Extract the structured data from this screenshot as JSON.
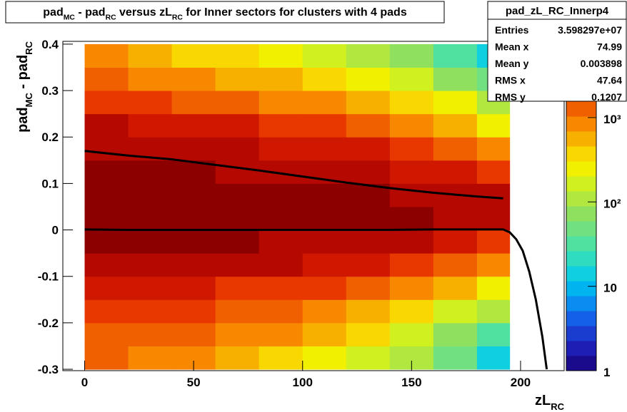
{
  "chart_data": {
    "type": "heatmap",
    "title_parts": [
      "pad",
      "MC",
      " - pad",
      "RC",
      " versus zL",
      "RC",
      " for Inner sectors for clusters with 4 pads"
    ],
    "x_label_parts": [
      "zL",
      "RC"
    ],
    "y_label_parts": [
      "pad",
      "MC",
      " - pad",
      "RC"
    ],
    "xlim": [
      -10,
      220
    ],
    "ylim": [
      -0.303,
      0.406
    ],
    "xticks": [
      0,
      50,
      100,
      150,
      200
    ],
    "yticks": [
      -0.3,
      -0.2,
      -0.1,
      0,
      0.1,
      0.2,
      0.3,
      0.4
    ],
    "zlim": [
      1,
      8000
    ],
    "log_z": true,
    "zticks": [
      1,
      10,
      {
        "value": 100,
        "label": "10²"
      },
      {
        "value": 1000,
        "label": "10³"
      }
    ],
    "palette": [
      "#1a0a8c",
      "#1e1eb4",
      "#1a3ccf",
      "#1460e8",
      "#0a8cf0",
      "#00b4f0",
      "#10d0e0",
      "#30dcc0",
      "#50e0a0",
      "#70e080",
      "#90e060",
      "#b0e840",
      "#d0f020",
      "#f0f000",
      "#f8d800",
      "#f8b000",
      "#f88800",
      "#f06000",
      "#e83800",
      "#d01800",
      "#b40800",
      "#8c0000"
    ],
    "xbins": [
      0,
      20,
      40,
      60,
      80,
      100,
      120,
      140,
      160,
      180,
      195
    ],
    "ybins": [
      -0.3,
      -0.25,
      -0.2,
      -0.15,
      -0.1,
      -0.05,
      0,
      0.05,
      0.1,
      0.15,
      0.2,
      0.25,
      0.3,
      0.35,
      0.4
    ],
    "z": [
      [
        1200,
        1500,
        2000,
        3000,
        4500,
        5500,
        6000,
        6000,
        5500,
        5000,
        4000,
        2000,
        1200,
        700
      ],
      [
        1000,
        1300,
        1800,
        2800,
        4500,
        5500,
        6000,
        6000,
        5500,
        4800,
        3500,
        1800,
        1000,
        600
      ],
      [
        800,
        1100,
        1600,
        2500,
        4200,
        5500,
        6000,
        6000,
        5500,
        4500,
        3000,
        1500,
        800,
        450
      ],
      [
        600,
        900,
        1300,
        2200,
        4000,
        5500,
        6000,
        6000,
        5000,
        4000,
        2500,
        1200,
        650,
        350
      ],
      [
        450,
        700,
        1100,
        2000,
        3800,
        5000,
        6000,
        6000,
        4800,
        3500,
        2000,
        1000,
        500,
        250
      ],
      [
        300,
        500,
        900,
        1700,
        3300,
        4800,
        6000,
        5800,
        4500,
        3000,
        1600,
        800,
        380,
        180
      ],
      [
        180,
        320,
        650,
        1300,
        2800,
        4500,
        5800,
        5500,
        4000,
        2500,
        1200,
        550,
        250,
        110
      ],
      [
        90,
        180,
        400,
        900,
        2200,
        4000,
        5500,
        5000,
        3300,
        1900,
        850,
        380,
        150,
        60
      ],
      [
        40,
        80,
        200,
        550,
        1500,
        3200,
        5000,
        4500,
        2600,
        1300,
        550,
        220,
        80,
        30
      ],
      [
        15,
        35,
        90,
        280,
        900,
        2300,
        4200,
        3800,
        1800,
        800,
        300,
        110,
        40,
        12
      ]
    ],
    "series": [
      {
        "color": "#000000",
        "x": [
          0,
          20,
          40,
          60,
          80,
          100,
          120,
          140,
          160,
          180,
          192,
          195,
          198,
          201,
          204,
          207,
          210,
          212
        ],
        "values": [
          0.001,
          0,
          0,
          0,
          0,
          0,
          0,
          0,
          0.001,
          0.001,
          0.001,
          -0.005,
          -0.02,
          -0.045,
          -0.09,
          -0.15,
          -0.23,
          -0.3
        ]
      },
      {
        "color": "#000000",
        "x": [
          0,
          20,
          40,
          60,
          80,
          100,
          120,
          140,
          160,
          180,
          192
        ],
        "values": [
          0.17,
          0.16,
          0.152,
          0.14,
          0.128,
          0.115,
          0.102,
          0.09,
          0.08,
          0.072,
          0.068
        ]
      }
    ],
    "stats": {
      "name": "pad_zL_RC_Innerp4",
      "rows": [
        [
          "Entries",
          "3.598297e+07"
        ],
        [
          "Mean x",
          "74.99"
        ],
        [
          "Mean y",
          "0.003898"
        ],
        [
          "RMS x",
          "47.64"
        ],
        [
          "RMS y",
          "0.1207"
        ]
      ]
    }
  }
}
